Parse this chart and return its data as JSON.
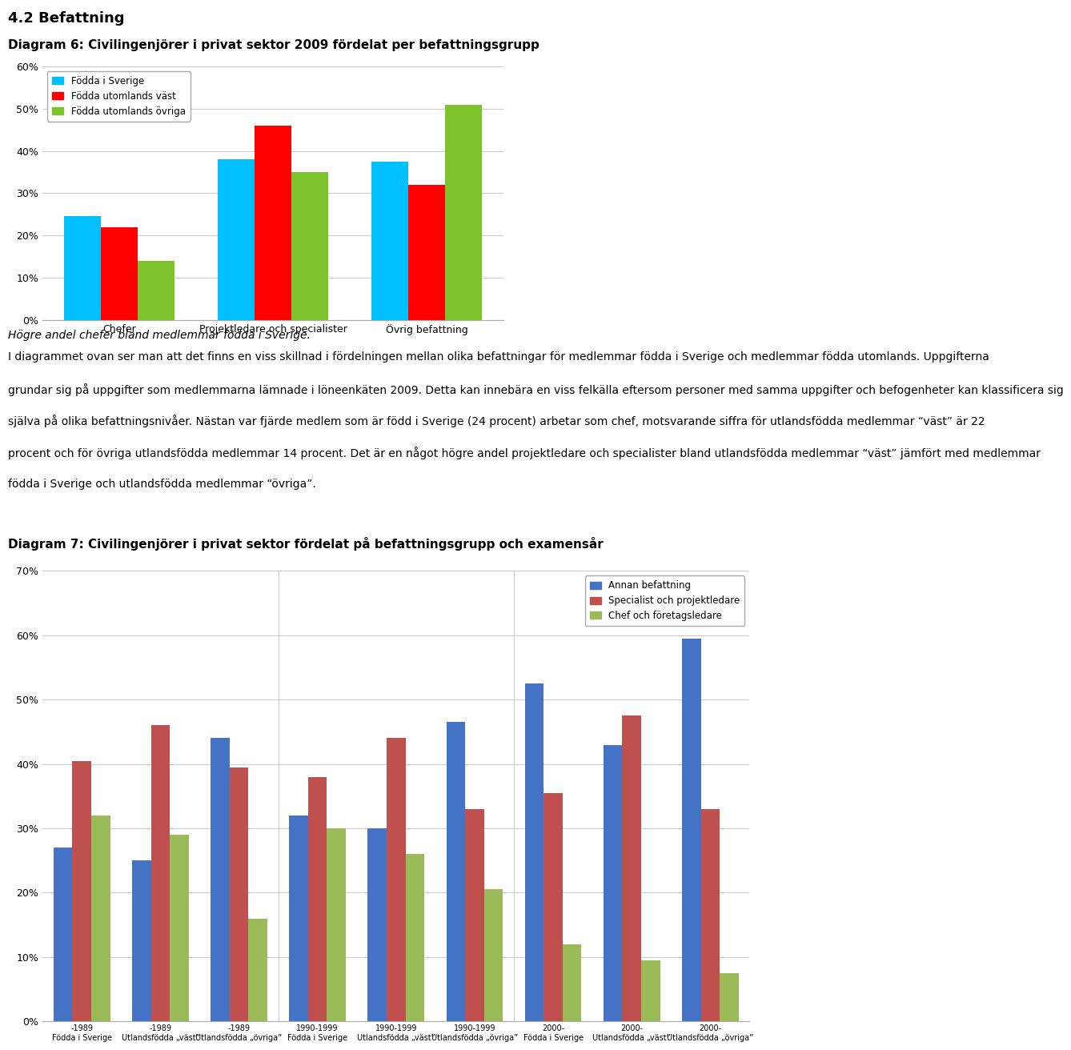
{
  "title1": "4.2 Befattning",
  "title2": "Diagram 6: Civilingenjörer i privat sektor 2009 fördelat per befattningsgrupp",
  "chart1_categories": [
    "Chefer",
    "Projektledare och specialister",
    "Övrig befattning"
  ],
  "chart1_series": {
    "Födda i Sverige": [
      24.5,
      38.0,
      37.5
    ],
    "Födda utomlands väst": [
      22.0,
      46.0,
      32.0
    ],
    "Födda utomlands övriga": [
      14.0,
      35.0,
      51.0
    ]
  },
  "chart1_colors": [
    "#00BFFF",
    "#FF0000",
    "#7DC42C"
  ],
  "chart1_ylim": [
    0,
    60
  ],
  "chart1_yticks": [
    0,
    10,
    20,
    30,
    40,
    50,
    60
  ],
  "chart1_ytick_labels": [
    "0%",
    "10%",
    "20%",
    "30%",
    "40%",
    "50%",
    "60%"
  ],
  "caption1": "Högre andel chefer bland medlemmar födda i Sverige.",
  "body_lines": [
    "I diagrammet ovan ser man att det finns en viss skillnad i fördelningen mellan olika befattningar för medlemmar födda i Sverige och medlemmar födda utomlands. Uppgifterna",
    "grundar sig på uppgifter som medlemmarna lämnade i löneenkäten 2009. Detta kan innebära en viss felkälla eftersom personer med samma uppgifter och befogenheter kan klassificera sig",
    "själva på olika befattningsnivåer. Nästan var fjärde medlem som är född i Sverige (24 procent) arbetar som chef, motsvarande siffra för utlandsfödda medlemmar “väst” är 22",
    "procent och för övriga utlandsfödda medlemmar 14 procent. Det är en något högre andel projektledare och specialister bland utlandsfödda medlemmar “väst” jämfört med medlemmar",
    "födda i Sverige och utlandsfödda medlemmar “övriga”."
  ],
  "title3": "Diagram 7: Civilingenjörer i privat sektor fördelat på befattningsgrupp och examensår",
  "chart2_xtick_top": [
    "-1989",
    "-1989",
    "-1989",
    "1990-1999",
    "1990-1999",
    "1990-1999",
    "2000-",
    "2000-",
    "2000-"
  ],
  "chart2_xtick_bot": [
    "Födda i Sverige",
    "Utlandsfödda „väst”",
    "Utlandsfödda „övriga”",
    "Födda i Sverige",
    "Utlandsfödda „väst”",
    "Utlandsfödda „övriga”",
    "Födda i Sverige",
    "Utlandsfödda „väst”",
    "Utlandsfödda „övriga”"
  ],
  "chart2_series": {
    "Annan befattning": [
      27.0,
      25.0,
      44.0,
      32.0,
      30.0,
      46.5,
      52.5,
      43.0,
      59.5
    ],
    "Specialist och projektledare": [
      40.5,
      46.0,
      39.5,
      38.0,
      44.0,
      33.0,
      35.5,
      47.5,
      33.0
    ],
    "Chef och företagsledare": [
      32.0,
      29.0,
      16.0,
      30.0,
      26.0,
      20.5,
      12.0,
      9.5,
      7.5
    ]
  },
  "chart2_colors": [
    "#4472C4",
    "#C0504D",
    "#9BBB59"
  ],
  "chart2_ylim": [
    0,
    70
  ],
  "chart2_yticks": [
    0,
    10,
    20,
    30,
    40,
    50,
    60,
    70
  ],
  "chart2_ytick_labels": [
    "0%",
    "10%",
    "20%",
    "30%",
    "40%",
    "50%",
    "60%",
    "70%"
  ]
}
